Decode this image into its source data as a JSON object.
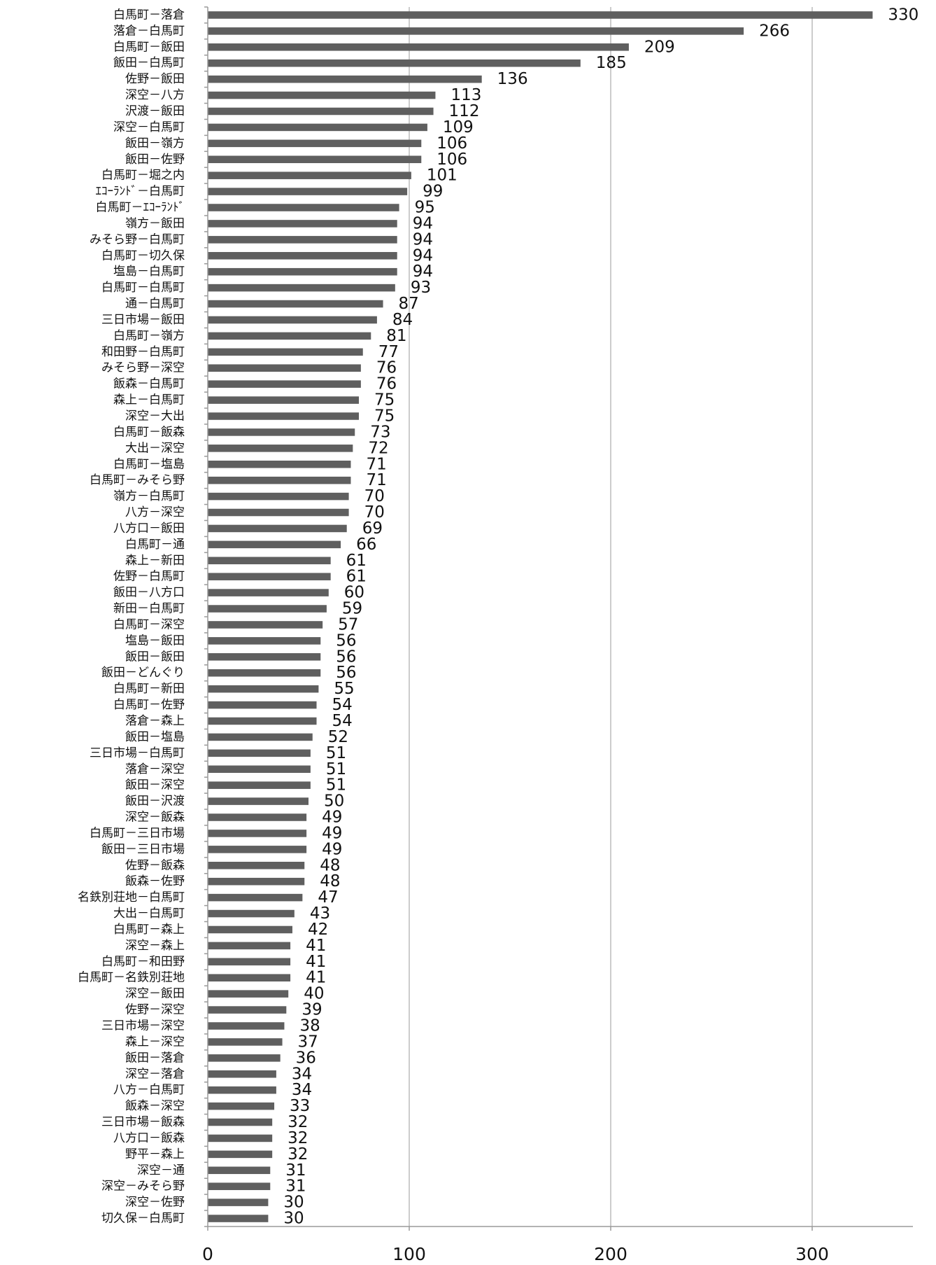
{
  "colors": {
    "bar": "#5f5f5f",
    "grid": "#b0b0b0",
    "axis": "#9a9a9a",
    "text": "#111111"
  },
  "chart_data": {
    "type": "bar",
    "orientation": "horizontal",
    "title": "",
    "xlabel": "",
    "ylabel": "",
    "xlim": [
      0,
      350
    ],
    "xticks": [
      0,
      100,
      200,
      300
    ],
    "grid": true,
    "data_labels": true,
    "categories": [
      "白馬町－落倉",
      "落倉－白馬町",
      "白馬町－飯田",
      "飯田－白馬町",
      "佐野－飯田",
      "深空－八方",
      "沢渡－飯田",
      "深空－白馬町",
      "飯田－嶺方",
      "飯田－佐野",
      "白馬町－堀之内",
      "ｴｺｰﾗﾝﾄﾞ－白馬町",
      "白馬町－ｴｺｰﾗﾝﾄﾞ",
      "嶺方－飯田",
      "みそら野－白馬町",
      "白馬町－切久保",
      "塩島－白馬町",
      "白馬町－白馬町",
      "通－白馬町",
      "三日市場－飯田",
      "白馬町－嶺方",
      "和田野－白馬町",
      "みそら野－深空",
      "飯森－白馬町",
      "森上－白馬町",
      "深空－大出",
      "白馬町－飯森",
      "大出－深空",
      "白馬町－塩島",
      "白馬町－みそら野",
      "嶺方－白馬町",
      "八方－深空",
      "八方口－飯田",
      "白馬町－通",
      "森上－新田",
      "佐野－白馬町",
      "飯田－八方口",
      "新田－白馬町",
      "白馬町－深空",
      "塩島－飯田",
      "飯田－飯田",
      "飯田－どんぐり",
      "白馬町－新田",
      "白馬町－佐野",
      "落倉－森上",
      "飯田－塩島",
      "三日市場－白馬町",
      "落倉－深空",
      "飯田－深空",
      "飯田－沢渡",
      "深空－飯森",
      "白馬町－三日市場",
      "飯田－三日市場",
      "佐野－飯森",
      "飯森－佐野",
      "名鉄別荘地－白馬町",
      "大出－白馬町",
      "白馬町－森上",
      "深空－森上",
      "白馬町－和田野",
      "白馬町－名鉄別荘地",
      "深空－飯田",
      "佐野－深空",
      "三日市場－深空",
      "森上－深空",
      "飯田－落倉",
      "深空－落倉",
      "八方－白馬町",
      "飯森－深空",
      "三日市場－飯森",
      "八方口－飯森",
      "野平－森上",
      "深空－通",
      "深空－みそら野",
      "深空－佐野",
      "切久保－白馬町"
    ],
    "values": [
      330,
      266,
      209,
      185,
      136,
      113,
      112,
      109,
      106,
      106,
      101,
      99,
      95,
      94,
      94,
      94,
      94,
      93,
      87,
      84,
      81,
      77,
      76,
      76,
      75,
      75,
      73,
      72,
      71,
      71,
      70,
      70,
      69,
      66,
      61,
      61,
      60,
      59,
      57,
      56,
      56,
      56,
      55,
      54,
      54,
      52,
      51,
      51,
      51,
      50,
      49,
      49,
      49,
      48,
      48,
      47,
      43,
      42,
      41,
      41,
      41,
      40,
      39,
      38,
      37,
      36,
      34,
      34,
      33,
      32,
      32,
      32,
      31,
      31,
      30,
      30
    ]
  }
}
